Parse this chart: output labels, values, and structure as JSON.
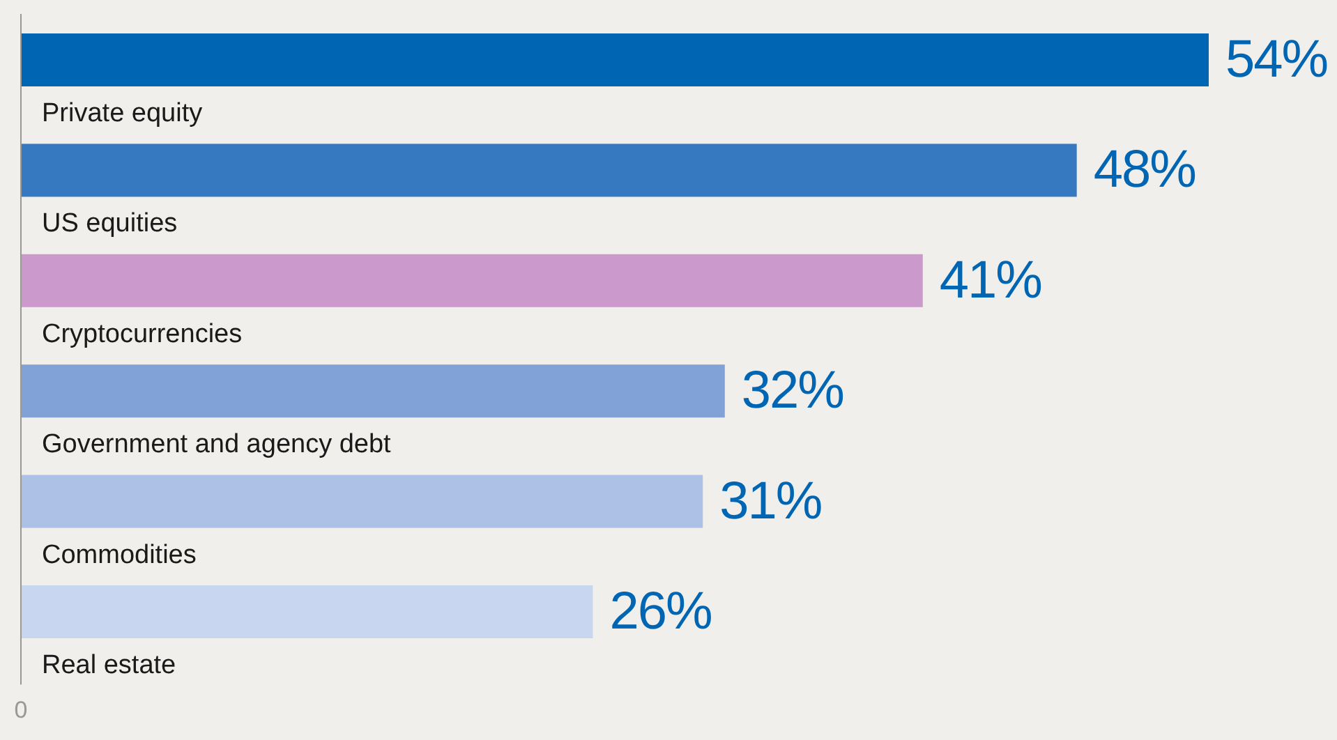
{
  "chart_data": {
    "type": "bar",
    "orientation": "horizontal",
    "categories": [
      "Private equity",
      "US equities",
      "Cryptocurrencies",
      "Government and agency debt",
      "Commodities",
      "Real estate"
    ],
    "values": [
      54,
      48,
      41,
      32,
      31,
      26
    ],
    "colors": [
      "#0066b3",
      "#3679c1",
      "#cc99cc",
      "#80a2d6",
      "#adc0e5",
      "#c9d6ef"
    ],
    "value_labels": [
      "54%",
      "48%",
      "41%",
      "32%",
      "31%",
      "26%"
    ],
    "annotations": [
      "0"
    ]
  }
}
